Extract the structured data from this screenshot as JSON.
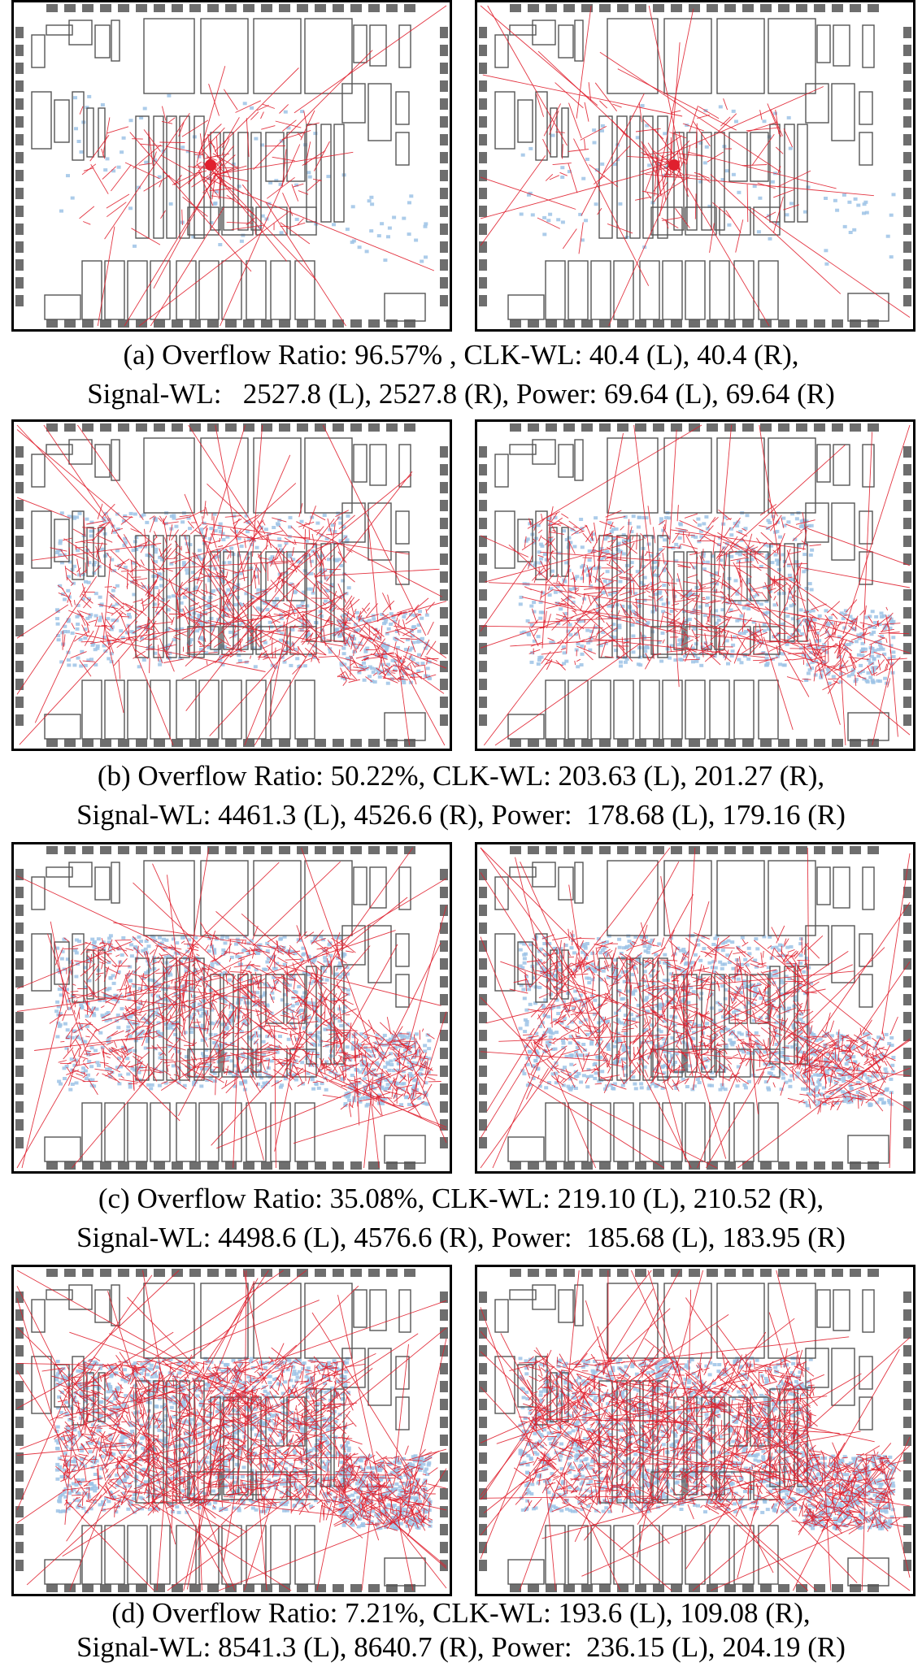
{
  "figure": {
    "rows": [
      {
        "caption_line1": "(a) Overflow Ratio: 96.57% , CLK-WL: 40.4 (L), 40.4 (R),",
        "caption_line2": "Signal-WL:   2527.8 (L), 2527.8 (R), Power: 69.64 (L), 69.64 (R)",
        "density": 0.06
      },
      {
        "caption_line1": "(b) Overflow Ratio: 50.22%, CLK-WL: 203.63 (L), 201.27 (R),",
        "caption_line2": "Signal-WL: 4461.3 (L), 4526.6 (R), Power:  178.68 (L), 179.16 (R)",
        "density": 0.45
      },
      {
        "caption_line1": "(c) Overflow Ratio: 35.08%, CLK-WL: 219.10 (L), 210.52 (R),",
        "caption_line2": "Signal-WL: 4498.6 (L), 4576.6 (R), Power:  185.68 (L), 183.95 (R)",
        "density": 0.65
      },
      {
        "caption_line1": "(d) Overflow Ratio: 7.21%, CLK-WL: 193.6 (L), 109.08 (R),",
        "caption_line2": "Signal-WL: 8541.3 (L), 8640.7 (R), Power:  236.15 (L), 204.19 (R)",
        "density": 1.0
      }
    ],
    "colors": {
      "wire": "#e0202e",
      "cell": "#9ec3e6",
      "macro_outline": "#555555",
      "io_pad": "#6e6e6e"
    }
  }
}
